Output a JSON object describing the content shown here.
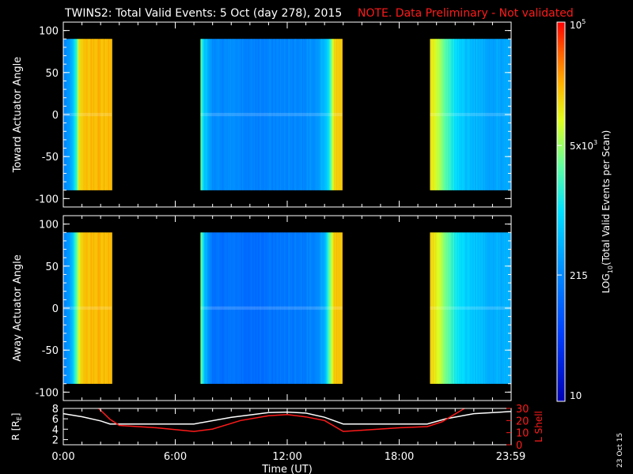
{
  "header": {
    "title": "TWINS2: Total Valid Events:  5 Oct (day 278), 2015",
    "note": "NOTE. Data Preliminary - Not validated"
  },
  "colorbar": {
    "label": "LOG10(Total Valid Events per Scan)",
    "label_main": "LOG",
    "label_sub": "10",
    "label_rest": "(Total Valid Events per Scan)",
    "ticks": [
      {
        "value": 100000,
        "label": "10",
        "sup": "5"
      },
      {
        "value": 5000,
        "label": "5x10",
        "sup": "3"
      },
      {
        "value": 215,
        "label": "215",
        "sup": ""
      },
      {
        "value": 10,
        "label": "10",
        "sup": ""
      }
    ],
    "range": [
      10,
      100000
    ],
    "scale": "log"
  },
  "footer": {
    "date_stamp": "23 Oct 15",
    "xlabel": "Time (UT)"
  },
  "chart_data": [
    {
      "type": "heatmap",
      "name": "top-panel",
      "ylabel": "Toward Actuator Angle",
      "xlim_hours": [
        0,
        24
      ],
      "ylim": [
        -110,
        110
      ],
      "yticks": [
        100,
        50,
        0,
        -50,
        -100
      ],
      "angle_range": [
        -90,
        90
      ],
      "data_windows_hours": [
        [
          0.0,
          2.6
        ],
        [
          7.35,
          14.95
        ],
        [
          19.65,
          24.0
        ]
      ],
      "intensity_profile_hours": [
        [
          0.0,
          215
        ],
        [
          0.3,
          300
        ],
        [
          0.5,
          600
        ],
        [
          0.7,
          2000
        ],
        [
          0.85,
          15000
        ],
        [
          1.2,
          20000
        ],
        [
          2.6,
          20000
        ],
        [
          7.35,
          3000
        ],
        [
          7.5,
          900
        ],
        [
          8.0,
          250
        ],
        [
          10.0,
          200
        ],
        [
          12.0,
          210
        ],
        [
          13.5,
          260
        ],
        [
          14.2,
          900
        ],
        [
          14.5,
          15000
        ],
        [
          14.95,
          20000
        ],
        [
          19.65,
          15000
        ],
        [
          20.2,
          5000
        ],
        [
          20.8,
          1500
        ],
        [
          21.5,
          600
        ],
        [
          22.5,
          400
        ],
        [
          23.99,
          350
        ]
      ]
    },
    {
      "type": "heatmap",
      "name": "bottom-panel",
      "ylabel": "Away Actuator Angle",
      "xlim_hours": [
        0,
        24
      ],
      "ylim": [
        -110,
        110
      ],
      "yticks": [
        100,
        50,
        0,
        -50,
        -100
      ],
      "angle_range": [
        -90,
        90
      ],
      "data_windows_hours": [
        [
          0.0,
          2.6
        ],
        [
          7.35,
          14.95
        ],
        [
          19.65,
          24.0
        ]
      ],
      "intensity_profile_hours": [
        [
          0.0,
          215
        ],
        [
          0.3,
          300
        ],
        [
          0.5,
          700
        ],
        [
          0.7,
          3000
        ],
        [
          0.9,
          15000
        ],
        [
          1.2,
          20000
        ],
        [
          2.6,
          20000
        ],
        [
          7.35,
          3500
        ],
        [
          7.6,
          500
        ],
        [
          8.0,
          150
        ],
        [
          10.0,
          130
        ],
        [
          12.0,
          160
        ],
        [
          13.5,
          200
        ],
        [
          14.0,
          500
        ],
        [
          14.5,
          18000
        ],
        [
          14.95,
          20000
        ],
        [
          19.65,
          18000
        ],
        [
          20.2,
          7000
        ],
        [
          20.8,
          2000
        ],
        [
          21.5,
          800
        ],
        [
          22.5,
          500
        ],
        [
          23.99,
          400
        ]
      ]
    },
    {
      "type": "line",
      "name": "orbit-panel",
      "xlim_hours": [
        0,
        24
      ],
      "xticks": [
        {
          "hour": 0,
          "label": "0:00"
        },
        {
          "hour": 6,
          "label": "6:00"
        },
        {
          "hour": 12,
          "label": "12:00"
        },
        {
          "hour": 18,
          "label": "18:00"
        },
        {
          "hour": 23.98,
          "label": "23:59"
        }
      ],
      "xlabel": "Time (UT)",
      "ylabel_left": "R [RE]",
      "ylabel_left_main": "R [R",
      "ylabel_left_sub": "E",
      "ylabel_left_end": "]",
      "ylim_left": [
        1,
        8
      ],
      "yticks_left": [
        2,
        4,
        6,
        8
      ],
      "ylabel_right": "L Shell",
      "ylim_right": [
        0,
        30
      ],
      "yticks_right": [
        0,
        10,
        20,
        30
      ],
      "series": [
        {
          "name": "R [RE]",
          "axis": "left",
          "color": "#ffffff",
          "x": [
            0,
            1,
            2,
            2.5,
            3,
            5,
            7,
            9,
            11,
            12,
            13,
            14,
            15,
            16,
            18,
            19.5,
            20.5,
            22,
            24
          ],
          "y": [
            7.0,
            6.4,
            5.6,
            5.0,
            5.0,
            5.0,
            5.0,
            6.3,
            7.2,
            7.3,
            7.1,
            6.3,
            5.0,
            5.0,
            5.0,
            5.0,
            6.0,
            7.0,
            7.4
          ]
        },
        {
          "name": "L Shell",
          "axis": "right",
          "color": "#ff1a1a",
          "x": [
            1.9,
            2.5,
            3.0,
            5.0,
            7.0,
            8.0,
            9.5,
            11.0,
            12.0,
            13.0,
            14.0,
            15.0,
            16.0,
            18.0,
            19.5,
            20.3,
            21.5
          ],
          "y": [
            30,
            21,
            16,
            14,
            11,
            13,
            20,
            24,
            25,
            23,
            20,
            11,
            12,
            14,
            15,
            19,
            31
          ]
        }
      ]
    }
  ]
}
